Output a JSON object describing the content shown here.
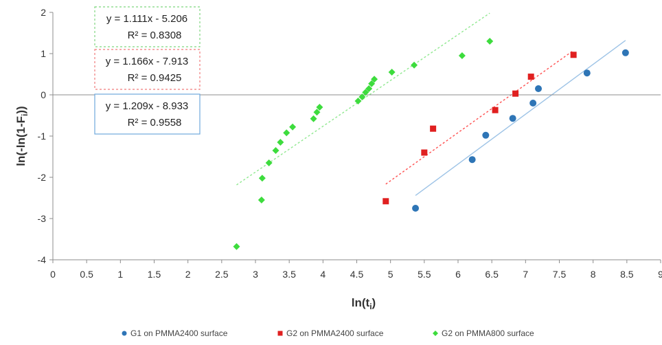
{
  "chart_data": {
    "type": "scatter",
    "title": "",
    "xlabel": "ln(t",
    "xlabel_sub": "i",
    "xlabel_close": ")",
    "ylabel": "ln(-ln(1-F",
    "ylabel_sub": "i",
    "ylabel_close": "))",
    "xlim": [
      0,
      9
    ],
    "ylim": [
      -4,
      2
    ],
    "x_ticks": [
      "0",
      "0.5",
      "1",
      "1.5",
      "2",
      "2.5",
      "3",
      "3.5",
      "4",
      "4.5",
      "5",
      "5.5",
      "6",
      "6.5",
      "7",
      "7.5",
      "8",
      "8.5",
      "9"
    ],
    "y_ticks": [
      "-4",
      "-3",
      "-2",
      "-1",
      "0",
      "1",
      "2"
    ],
    "grid": false,
    "legend_position": "bottom",
    "series": [
      {
        "name": "G1 on PMMA2400 surface",
        "color": "#2e75b6",
        "marker": "circle",
        "x": [
          5.37,
          6.21,
          6.41,
          6.81,
          7.11,
          7.19,
          7.91,
          8.48
        ],
        "y": [
          -2.75,
          -1.57,
          -0.98,
          -0.57,
          -0.2,
          0.15,
          0.53,
          1.02
        ],
        "trendline": {
          "equation": "y = 1.209x - 8.933",
          "r2": "R² = 0.9558",
          "slope": 1.209,
          "intercept": -8.933,
          "x_range": [
            5.37,
            8.48
          ],
          "style": "solid",
          "color": "#9dc3e6"
        }
      },
      {
        "name": "G2 on PMMA2400 surface",
        "color": "#e02020",
        "marker": "square",
        "x": [
          4.93,
          5.5,
          5.63,
          6.55,
          6.85,
          7.08,
          7.71
        ],
        "y": [
          -2.58,
          -1.4,
          -0.82,
          -0.37,
          0.03,
          0.44,
          0.97
        ],
        "trendline": {
          "equation": "y = 1.166x - 7.913",
          "r2": "R² = 0.9425",
          "slope": 1.166,
          "intercept": -7.913,
          "x_range": [
            4.93,
            7.71
          ],
          "style": "dotted",
          "color": "#ff5050"
        }
      },
      {
        "name": "G2 on PMMA800 surface",
        "color": "#3ddc3d",
        "marker": "diamond",
        "x": [
          2.72,
          3.09,
          3.1,
          3.2,
          3.3,
          3.37,
          3.46,
          3.55,
          3.86,
          3.91,
          3.95,
          4.52,
          4.58,
          4.63,
          4.68,
          4.72,
          4.76,
          5.02,
          5.35,
          6.06,
          6.47
        ],
        "y": [
          -3.68,
          -2.55,
          -2.02,
          -1.65,
          -1.35,
          -1.15,
          -0.92,
          -0.78,
          -0.58,
          -0.42,
          -0.3,
          -0.15,
          -0.05,
          0.06,
          0.15,
          0.27,
          0.38,
          0.55,
          0.72,
          0.95,
          1.3
        ],
        "trendline": {
          "equation": "y = 1.111x - 5.206",
          "r2": "R² = 0.8308",
          "slope": 1.111,
          "intercept": -5.206,
          "x_range": [
            2.72,
            6.47
          ],
          "style": "dotted",
          "color": "#8fe88f"
        }
      }
    ]
  }
}
